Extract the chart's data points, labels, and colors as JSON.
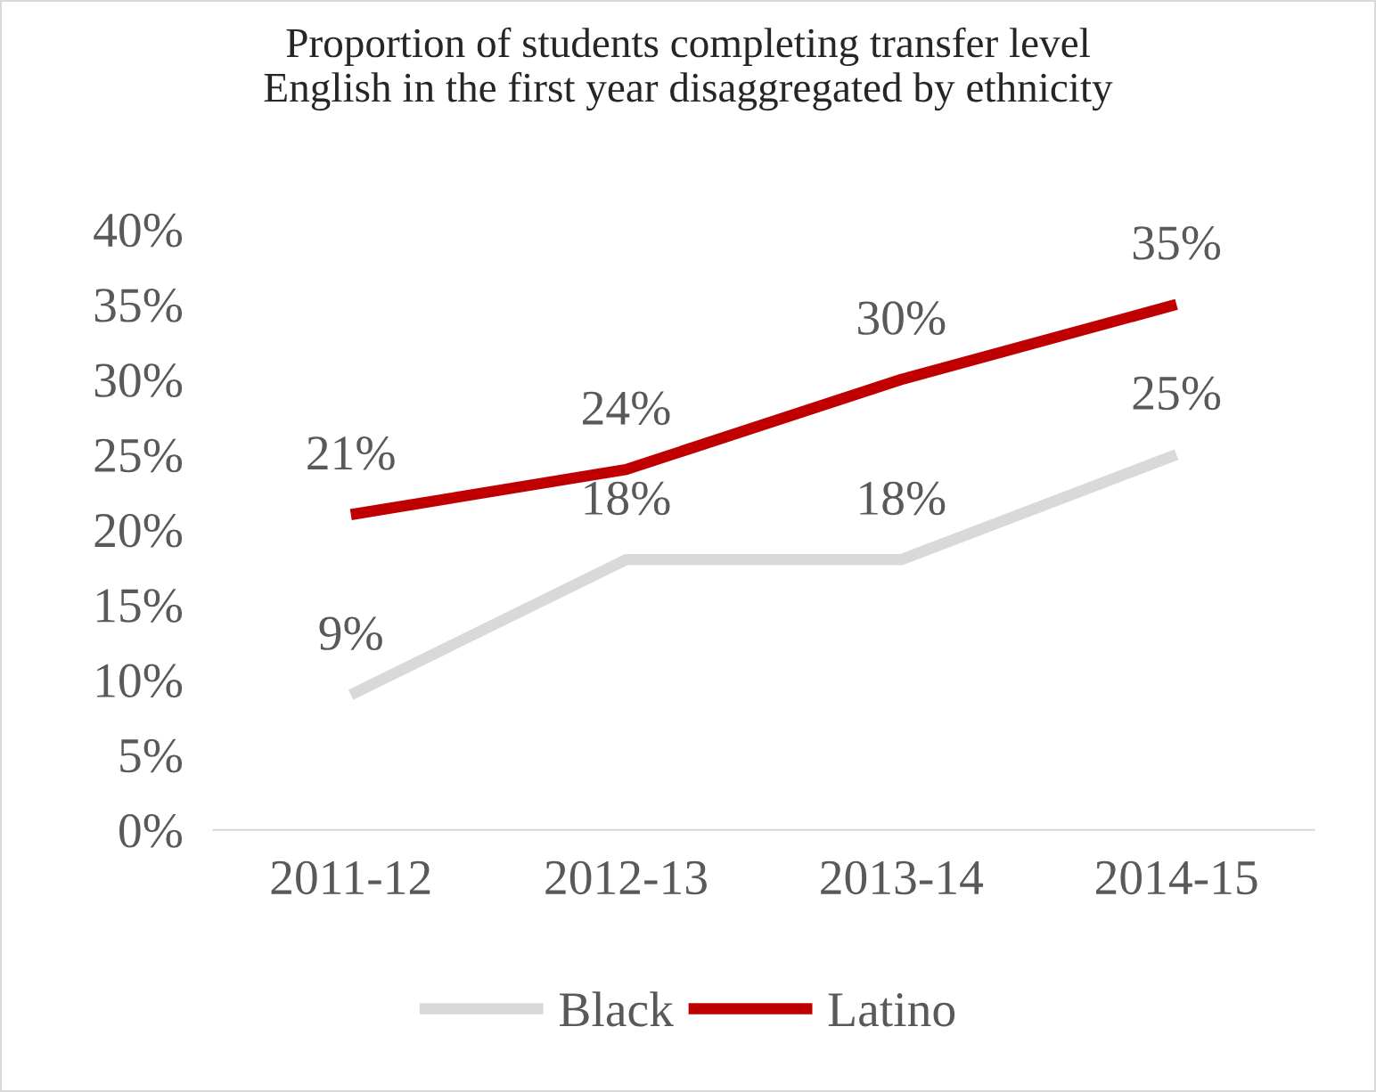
{
  "chart_data": {
    "type": "line",
    "title": "Proportion of students completing transfer level\nEnglish in the first year disaggregated by ethnicity",
    "categories": [
      "2011-12",
      "2012-13",
      "2013-14",
      "2014-15"
    ],
    "series": [
      {
        "name": "Black",
        "color": "#d9d9d9",
        "values": [
          9,
          18,
          18,
          25
        ],
        "value_labels": [
          "9%",
          "18%",
          "18%",
          "25%"
        ]
      },
      {
        "name": "Latino",
        "color": "#c00000",
        "values": [
          21,
          24,
          30,
          35
        ],
        "value_labels": [
          "21%",
          "24%",
          "30%",
          "35%"
        ]
      }
    ],
    "ylim": [
      0,
      40
    ],
    "yticks": [
      {
        "value": 0,
        "label": "0%"
      },
      {
        "value": 5,
        "label": "5%"
      },
      {
        "value": 10,
        "label": "10%"
      },
      {
        "value": 15,
        "label": "15%"
      },
      {
        "value": 20,
        "label": "20%"
      },
      {
        "value": 25,
        "label": "25%"
      },
      {
        "value": 30,
        "label": "30%"
      },
      {
        "value": 35,
        "label": "35%"
      },
      {
        "value": 40,
        "label": "40%"
      }
    ],
    "grid": false,
    "legend": "bottom",
    "marker": "none",
    "line_style": "solid"
  }
}
